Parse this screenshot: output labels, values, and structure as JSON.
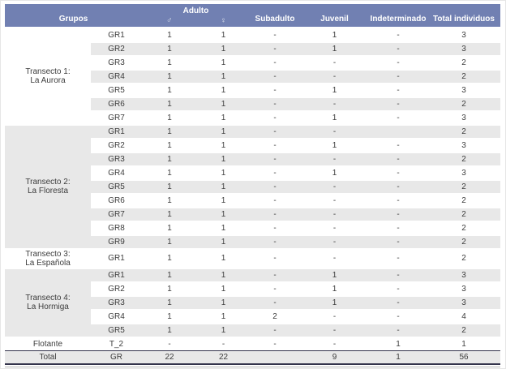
{
  "colors": {
    "header_bg": "#7180B2",
    "stripe": "#e8e8e8",
    "text": "#3d3d3d",
    "dark_rule": "#34344c",
    "faint_rule": "#b5b5b5"
  },
  "table": {
    "header": {
      "grupos": "Grupos",
      "adulto": "Adulto",
      "male_symbol": "♂",
      "female_symbol": "♀",
      "subadulto": "Subadulto",
      "juvenil": "Juvenil",
      "indeterminado": "Indeterminado",
      "total_individuos": "Total individuos"
    },
    "sections": [
      {
        "label_lines": [
          "Transecto 1:",
          "La Aurora"
        ],
        "rows": [
          {
            "group": "GR1",
            "values": [
              "1",
              "1",
              "-",
              "1",
              "-",
              "3"
            ]
          },
          {
            "group": "GR2",
            "values": [
              "1",
              "1",
              "-",
              "1",
              "-",
              "3"
            ]
          },
          {
            "group": "GR3",
            "values": [
              "1",
              "1",
              "-",
              "-",
              "-",
              "2"
            ]
          },
          {
            "group": "GR4",
            "values": [
              "1",
              "1",
              "-",
              "-",
              "-",
              "2"
            ]
          },
          {
            "group": "GR5",
            "values": [
              "1",
              "1",
              "-",
              "1",
              "-",
              "3"
            ]
          },
          {
            "group": "GR6",
            "values": [
              "1",
              "1",
              "-",
              "-",
              "-",
              "2"
            ]
          },
          {
            "group": "GR7",
            "values": [
              "1",
              "1",
              "-",
              "1",
              "-",
              "3"
            ]
          }
        ]
      },
      {
        "label_lines": [
          "Transecto 2:",
          "La Floresta"
        ],
        "rows": [
          {
            "group": "GR1",
            "values": [
              "1",
              "1",
              "-",
              "-",
              "",
              "2"
            ]
          },
          {
            "group": "GR2",
            "values": [
              "1",
              "1",
              "-",
              "1",
              "-",
              "3"
            ]
          },
          {
            "group": "GR3",
            "values": [
              "1",
              "1",
              "-",
              "-",
              "-",
              "2"
            ]
          },
          {
            "group": "GR4",
            "values": [
              "1",
              "1",
              "-",
              "1",
              "-",
              "3"
            ]
          },
          {
            "group": "GR5",
            "values": [
              "1",
              "1",
              "-",
              "-",
              "-",
              "2"
            ]
          },
          {
            "group": "GR6",
            "values": [
              "1",
              "1",
              "-",
              "-",
              "-",
              "2"
            ]
          },
          {
            "group": "GR7",
            "values": [
              "1",
              "1",
              "-",
              "-",
              "-",
              "2"
            ]
          },
          {
            "group": "GR8",
            "values": [
              "1",
              "1",
              "-",
              "-",
              "-",
              "2"
            ]
          },
          {
            "group": "GR9",
            "values": [
              "1",
              "1",
              "-",
              "-",
              "-",
              "2"
            ]
          }
        ]
      },
      {
        "label_lines": [
          "Transecto 3:",
          "La Española"
        ],
        "rows": [
          {
            "group": "GR1",
            "values": [
              "1",
              "1",
              "-",
              "-",
              "-",
              "2"
            ]
          }
        ]
      },
      {
        "label_lines": [
          "Transecto 4:",
          "La Hormiga"
        ],
        "rows": [
          {
            "group": "GR1",
            "values": [
              "1",
              "1",
              "-",
              "1",
              "-",
              "3"
            ]
          },
          {
            "group": "GR2",
            "values": [
              "1",
              "1",
              "-",
              "1",
              "-",
              "3"
            ]
          },
          {
            "group": "GR3",
            "values": [
              "1",
              "1",
              "-",
              "1",
              "-",
              "3"
            ]
          },
          {
            "group": "GR4",
            "values": [
              "1",
              "1",
              "2",
              "-",
              "-",
              "4"
            ]
          },
          {
            "group": "GR5",
            "values": [
              "1",
              "1",
              "-",
              "-",
              "-",
              "2"
            ]
          }
        ]
      },
      {
        "label_lines": [
          "Flotante"
        ],
        "rows": [
          {
            "group": "T_2",
            "values": [
              "-",
              "-",
              "-",
              "-",
              "1",
              "1"
            ]
          }
        ]
      }
    ],
    "total_row": {
      "label": "Total",
      "group": "GR",
      "values": [
        "22",
        "22",
        "",
        "9",
        "1",
        "56"
      ]
    }
  }
}
